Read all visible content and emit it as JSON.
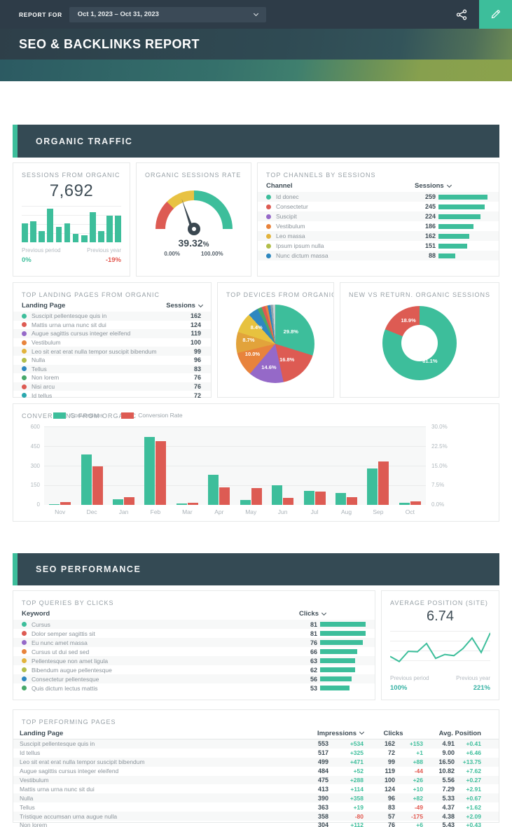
{
  "topbar": {
    "report_for_label": "REPORT FOR",
    "date_range": "Oct 1, 2023 – Oct 31, 2023"
  },
  "title": "SEO & BACKLINKS REPORT",
  "colors": {
    "accent_green": "#3dbe9b",
    "negative_red": "#e2574e",
    "teal_stat": "#36b2a4",
    "section_header_bg": "#344a54",
    "topbar_bg": "#2e3c48"
  },
  "sections": {
    "organic": "ORGANIC TRAFFIC",
    "seo": "SEO PERFORMANCE"
  },
  "sessions_panel": {
    "title": "SESSIONS FROM ORGANIC",
    "value": "7,692",
    "chart_data": {
      "type": "bar",
      "values": [
        57,
        63,
        34,
        100,
        46,
        57,
        26,
        21,
        90,
        34,
        79,
        79
      ],
      "note": "relative heights 0-100, no axis shown"
    },
    "prev_period_label": "Previous period",
    "prev_period_value": "0%",
    "prev_year_label": "Previous year",
    "prev_year_value": "-19%"
  },
  "gauge_panel": {
    "title": "ORGANIC SESSIONS RATE",
    "value": 39.32,
    "value_label": "39.32",
    "unit": "%",
    "min_label": "0.00%",
    "max_label": "100.00%",
    "chart_data": {
      "type": "gauge",
      "value": 39.32,
      "range": [
        0,
        100
      ],
      "segments": [
        {
          "pct": 25,
          "color": "#dd5b53"
        },
        {
          "pct": 25,
          "color": "#e8c243"
        },
        {
          "pct": 50,
          "color": "#3dbe9b"
        }
      ]
    }
  },
  "channels_panel": {
    "title": "TOP CHANNELS BY SESSIONS",
    "col_channel": "Channel",
    "col_sessions": "Sessions",
    "chart_data": {
      "type": "table",
      "rows": [
        {
          "label": "Id donec",
          "value": 259,
          "color": "#3dbe9b"
        },
        {
          "label": "Consectetur",
          "value": 245,
          "color": "#dd5b53"
        },
        {
          "label": "Suscipit",
          "value": 224,
          "color": "#9569c8"
        },
        {
          "label": "Vestibulum",
          "value": 186,
          "color": "#e8833c"
        },
        {
          "label": "Leo massa",
          "value": 162,
          "color": "#e2b33c"
        },
        {
          "label": "Ipsum ipsum nulla",
          "value": 151,
          "color": "#b2be4a"
        },
        {
          "label": "Nunc dictum massa",
          "value": 88,
          "color": "#2d87bf"
        }
      ]
    }
  },
  "landing_panel": {
    "title": "TOP LANDING PAGES FROM ORGANIC",
    "col_page": "Landing Page",
    "col_sessions": "Sessions",
    "chart_data": {
      "type": "table",
      "rows": [
        {
          "label": "Suscipit pellentesque quis in",
          "value": 162,
          "color": "#3dbe9b"
        },
        {
          "label": "Mattis urna urna nunc sit dui",
          "value": 124,
          "color": "#dd5b53"
        },
        {
          "label": "Augue sagittis cursus integer eleifend",
          "value": 119,
          "color": "#9569c8"
        },
        {
          "label": "Vestibulum",
          "value": 100,
          "color": "#e8833c"
        },
        {
          "label": "Leo sit erat erat nulla tempor suscipit bibendum",
          "value": 99,
          "color": "#e2b33c"
        },
        {
          "label": "Nulla",
          "value": 96,
          "color": "#b2be4a"
        },
        {
          "label": "Tellus",
          "value": 83,
          "color": "#2d87bf"
        },
        {
          "label": "Non lorem",
          "value": 76,
          "color": "#47a86a"
        },
        {
          "label": "Nisi arcu",
          "value": 76,
          "color": "#dd5b53"
        },
        {
          "label": "Id tellus",
          "value": 72,
          "color": "#2aa8ae"
        }
      ]
    }
  },
  "devices_panel": {
    "title": "TOP DEVICES FROM ORGANIC",
    "chart_data": {
      "type": "pie",
      "slices": [
        {
          "label": "29.8%",
          "pct": 29.8,
          "color": "#3dbe9b"
        },
        {
          "label": "16.8%",
          "pct": 16.8,
          "color": "#dd5b53"
        },
        {
          "label": "14.6%",
          "pct": 14.6,
          "color": "#9569c8"
        },
        {
          "label": "10.0%",
          "pct": 10.0,
          "color": "#e8833c"
        },
        {
          "label": "8.7%",
          "pct": 8.7,
          "color": "#e2a33b"
        },
        {
          "label": "8.4%",
          "pct": 8.4,
          "color": "#e7c23f"
        },
        {
          "pct": 4.2,
          "color": "#2f87c0"
        },
        {
          "pct": 1.8,
          "color": "#47a86a"
        },
        {
          "pct": 1.5,
          "color": "#dd5b53"
        },
        {
          "pct": 1.0,
          "color": "#e8833c"
        },
        {
          "pct": 1.2,
          "color": "#2f87c0"
        },
        {
          "pct": 1.0,
          "color": "#8fa3ad"
        },
        {
          "pct": 1.0,
          "color": "#c7ced2"
        }
      ]
    }
  },
  "newreturn_panel": {
    "title": "NEW VS RETURN. ORGANIC SESSIONS",
    "chart_data": {
      "type": "pie",
      "slices": [
        {
          "label": "81.1%",
          "pct": 81.1,
          "color": "#3dbe9b"
        },
        {
          "label": "18.9%",
          "pct": 18.9,
          "color": "#dd5b53"
        }
      ]
    }
  },
  "conversions_panel": {
    "title": "CONVERSIONS FROM ORGANIC",
    "legend": [
      {
        "label": "Conversions",
        "color": "#3dbe9b"
      },
      {
        "label": "Conversion Rate",
        "color": "#dd5b53"
      }
    ],
    "chart_data": {
      "type": "bar",
      "categories": [
        "Nov",
        "Dec",
        "Jan",
        "Feb",
        "Mar",
        "Apr",
        "May",
        "Jun",
        "Jul",
        "Aug",
        "Sep",
        "Oct"
      ],
      "series": [
        {
          "name": "Conversions",
          "axis": "left",
          "values": [
            8,
            385,
            42,
            520,
            10,
            230,
            35,
            150,
            105,
            90,
            280,
            18
          ]
        },
        {
          "name": "Conversion Rate",
          "axis": "right",
          "unit": "%",
          "values": [
            1.1,
            14.8,
            3.0,
            24.5,
            0.9,
            6.8,
            6.3,
            2.8,
            5.0,
            2.9,
            16.5,
            1.4
          ]
        }
      ],
      "ylim_left": [
        0,
        600
      ],
      "ylim_right": [
        0,
        30
      ],
      "y_left_ticks": [
        "600",
        "450",
        "300",
        "150",
        "0"
      ],
      "y_right_ticks": [
        "30.0%",
        "22.5%",
        "15.0%",
        "7.5%",
        "0.0%"
      ],
      "grid": true,
      "legend_position": "top"
    }
  },
  "queries_panel": {
    "title": "TOP QUERIES BY CLICKS",
    "col_keyword": "Keyword",
    "col_clicks": "Clicks",
    "chart_data": {
      "type": "table",
      "rows": [
        {
          "label": "Cursus",
          "clicks": 81,
          "color": "#3dbe9b"
        },
        {
          "label": "Dolor semper sagittis sit",
          "clicks": 81,
          "color": "#dd5b53"
        },
        {
          "label": "Eu nunc amet massa",
          "clicks": 76,
          "color": "#9569c8"
        },
        {
          "label": "Cursus ut dui sed sed",
          "clicks": 66,
          "color": "#e8833c"
        },
        {
          "label": "Pellentesque non amet ligula",
          "clicks": 63,
          "color": "#e2b33c"
        },
        {
          "label": "Bibendum augue pellentesque",
          "clicks": 62,
          "color": "#b2be4a"
        },
        {
          "label": "Consectetur pellentesque",
          "clicks": 56,
          "color": "#2d87bf"
        },
        {
          "label": "Quis dictum lectus mattis",
          "clicks": 53,
          "color": "#47a86a"
        }
      ]
    }
  },
  "avgpos_panel": {
    "title": "AVERAGE POSITION (SITE)",
    "value": "6.74",
    "chart_data": {
      "type": "line",
      "values": [
        35,
        22,
        48,
        47,
        68,
        30,
        40,
        37,
        55,
        82,
        45,
        95
      ],
      "note": "relative heights 0-100, no axis shown"
    },
    "prev_period_label": "Previous period",
    "prev_period_value": "100%",
    "prev_year_label": "Previous year",
    "prev_year_value": "221%"
  },
  "pages_panel": {
    "title": "TOP PERFORMING PAGES",
    "col_page": "Landing Page",
    "col_impressions": "Impressions",
    "col_clicks": "Clicks",
    "col_position": "Avg. Position",
    "chart_data": {
      "type": "table",
      "rows": [
        {
          "page": "Suscipit pellentesque quis in",
          "impressions": "553",
          "impressions_delta": "+534",
          "clicks": "162",
          "clicks_delta": "+153",
          "position": "4.91",
          "position_delta": "+0.41"
        },
        {
          "page": "Id tellus",
          "impressions": "517",
          "impressions_delta": "+325",
          "clicks": "72",
          "clicks_delta": "+1",
          "position": "9.00",
          "position_delta": "+6.46"
        },
        {
          "page": "Leo sit erat erat nulla tempor suscipit bibendum",
          "impressions": "499",
          "impressions_delta": "+471",
          "clicks": "99",
          "clicks_delta": "+88",
          "position": "16.50",
          "position_delta": "+13.75"
        },
        {
          "page": "Augue sagittis cursus integer eleifend",
          "impressions": "484",
          "impressions_delta": "+52",
          "clicks": "119",
          "clicks_delta": "-44",
          "position": "10.82",
          "position_delta": "+7.62"
        },
        {
          "page": "Vestibulum",
          "impressions": "475",
          "impressions_delta": "+288",
          "clicks": "100",
          "clicks_delta": "+26",
          "position": "5.56",
          "position_delta": "+0.27"
        },
        {
          "page": "Mattis urna urna nunc sit dui",
          "impressions": "413",
          "impressions_delta": "+114",
          "clicks": "124",
          "clicks_delta": "+10",
          "position": "7.29",
          "position_delta": "+2.91"
        },
        {
          "page": "Nulla",
          "impressions": "390",
          "impressions_delta": "+358",
          "clicks": "96",
          "clicks_delta": "+82",
          "position": "5.33",
          "position_delta": "+0.67"
        },
        {
          "page": "Tellus",
          "impressions": "363",
          "impressions_delta": "+19",
          "clicks": "83",
          "clicks_delta": "-49",
          "position": "4.37",
          "position_delta": "+1.62"
        },
        {
          "page": "Tristique accumsan urna augue nulla",
          "impressions": "358",
          "impressions_delta": "-80",
          "clicks": "57",
          "clicks_delta": "-175",
          "position": "4.38",
          "position_delta": "+2.09"
        },
        {
          "page": "Non lorem",
          "impressions": "304",
          "impressions_delta": "+112",
          "clicks": "76",
          "clicks_delta": "+6",
          "position": "5.43",
          "position_delta": "+0.43"
        }
      ]
    }
  }
}
